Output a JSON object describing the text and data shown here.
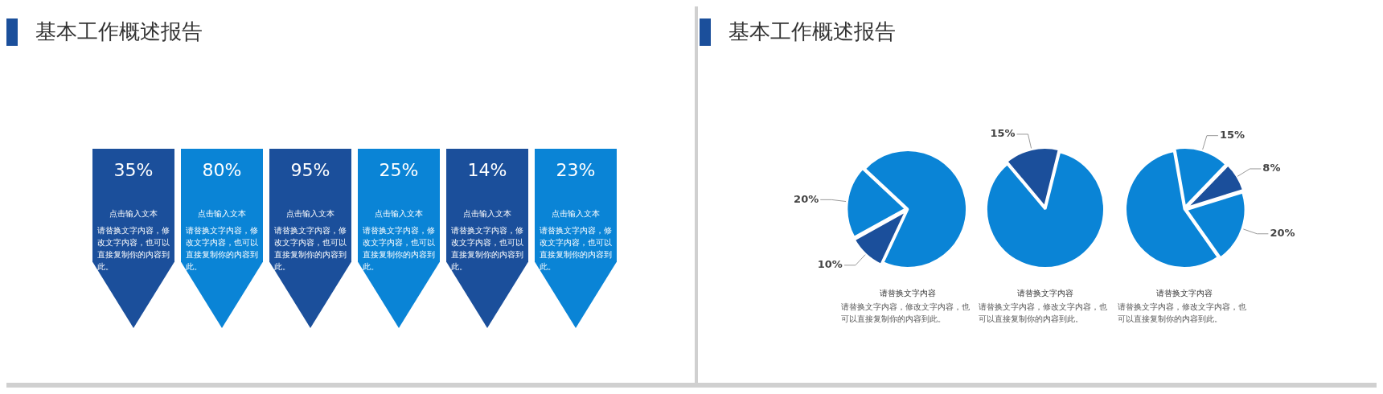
{
  "chart_data": [
    {
      "type": "other",
      "title": "基本工作概述报告",
      "categories": [
        "点击输入文本",
        "点击输入文本",
        "点击输入文本",
        "点击输入文本",
        "点击输入文本",
        "点击输入文本"
      ],
      "values": [
        35,
        80,
        95,
        25,
        14,
        23
      ],
      "value_labels": [
        "35%",
        "80%",
        "95%",
        "25%",
        "14%",
        "23%"
      ],
      "colors": [
        "#1b4f9b",
        "#0a84d6",
        "#1b4f9b",
        "#0a84d6",
        "#1b4f9b",
        "#0a84d6"
      ],
      "annotations": [
        "请替换文字内容，修改文字内容，也可以直接复制你的内容到此。",
        "请替换文字内容，修改文字内容，也可以直接复制你的内容到此。",
        "请替换文字内容，修改文字内容，也可以直接复制你的内容到此。",
        "请替换文字内容，修改文字内容，也可以直接复制你的内容到此。",
        "请替换文字内容，修改文字内容，也可以直接复制你的内容到此。",
        "请替换文字内容，修改文字内容，也可以直接复制你的内容到此。"
      ]
    },
    {
      "type": "pie",
      "title": "基本工作概述报告",
      "categories": [
        null,
        null,
        null
      ],
      "values": [
        10,
        20,
        70
      ],
      "value_labels": [
        "10%",
        "20%",
        null
      ],
      "colors": [
        "#1b4f9b",
        "#0a84d6",
        "#0a84d6"
      ],
      "annotations": [
        "请替换文字内容",
        "请替换文字内容，修改文字内容，也可以直接复制你的内容到此。"
      ]
    },
    {
      "type": "pie",
      "categories": [
        null,
        null
      ],
      "values": [
        15,
        85
      ],
      "value_labels": [
        "15%",
        null
      ],
      "colors": [
        "#1b4f9b",
        "#0a84d6"
      ],
      "annotations": [
        "请替换文字内容",
        "请替换文字内容，修改文字内容，也可以直接复制你的内容到此。"
      ]
    },
    {
      "type": "pie",
      "categories": [
        null,
        null,
        null,
        null
      ],
      "values": [
        15,
        8,
        20,
        57
      ],
      "value_labels": [
        "15%",
        "8%",
        "20%",
        null
      ],
      "colors": [
        "#0a84d6",
        "#1b4f9b",
        "#0a84d6",
        "#0a84d6"
      ],
      "annotations": [
        "请替换文字内容",
        "请替换文字内容，修改文字内容，也可以直接复制你的内容到此。"
      ]
    }
  ]
}
